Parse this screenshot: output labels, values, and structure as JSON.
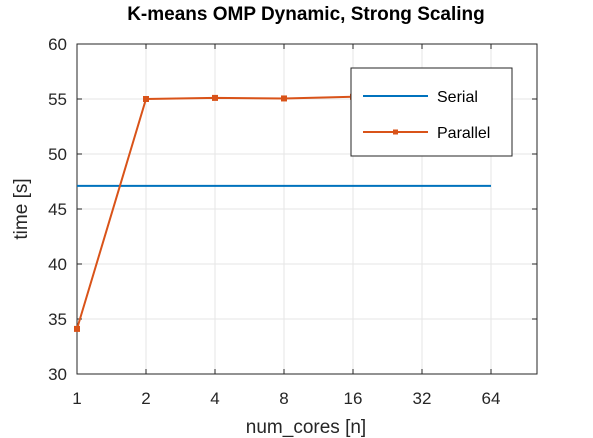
{
  "chart_data": {
    "type": "line",
    "title": "K-means OMP Dynamic, Strong Scaling",
    "xlabel": "num_cores [n]",
    "ylabel": "time [s]",
    "categories": [
      "1",
      "2",
      "4",
      "8",
      "16",
      "32",
      "64"
    ],
    "ylim": [
      30,
      60
    ],
    "yticks": [
      "30",
      "35",
      "40",
      "45",
      "50",
      "55",
      "60"
    ],
    "grid": true,
    "legend_position": "top-right",
    "series": [
      {
        "name": "Serial",
        "color": "#0072BD",
        "marker": "none",
        "values": [
          47.1,
          47.1,
          47.1,
          47.1,
          47.1,
          47.1,
          47.1
        ]
      },
      {
        "name": "Parallel",
        "color": "#D95319",
        "marker": "square",
        "values": [
          34.1,
          55.0,
          55.1,
          55.05,
          55.2,
          55.3,
          null
        ]
      }
    ]
  }
}
